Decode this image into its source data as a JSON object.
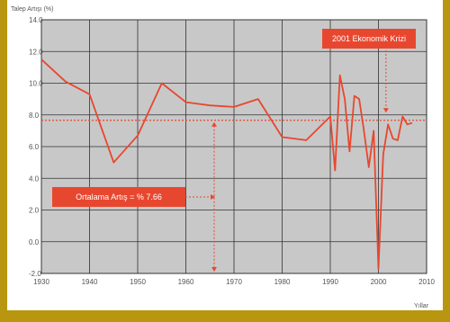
{
  "chart_data": {
    "type": "line",
    "ylabel": "Talep Artışı (%)",
    "xlabel": "Yıllar",
    "xlim": [
      1930,
      2010
    ],
    "ylim": [
      -2.0,
      14.0
    ],
    "x_ticks": [
      "1930",
      "1940",
      "1950",
      "1960",
      "1970",
      "1980",
      "1990",
      "2000",
      "2010"
    ],
    "y_ticks": [
      "14.0",
      "12.0",
      "10.0",
      "8.0",
      "6.0",
      "4.0",
      "2.0",
      "0.0",
      "-2.0"
    ],
    "grid": true,
    "series": [
      {
        "color": "#e8472f",
        "x": [
          1930,
          1935,
          1940,
          1945,
          1950,
          1955,
          1960,
          1965,
          1970,
          1975,
          1980,
          1985,
          1990,
          1991,
          1992,
          1993,
          1994,
          1995,
          1996,
          1997,
          1998,
          1999,
          2000,
          2001,
          2002,
          2003,
          2004,
          2005,
          2006,
          2007
        ],
        "y": [
          11.5,
          10.1,
          9.3,
          5.0,
          6.7,
          10.0,
          8.8,
          8.6,
          8.5,
          9.0,
          6.6,
          6.4,
          7.9,
          4.5,
          10.5,
          9.0,
          5.7,
          9.2,
          9.0,
          7.0,
          4.7,
          7.0,
          -1.7,
          5.5,
          7.4,
          6.5,
          6.4,
          7.9,
          7.4,
          7.5
        ]
      }
    ],
    "average": 7.66,
    "annotations": [
      {
        "text": "2001 Ekonomik Krizi",
        "color": "#e8472f"
      },
      {
        "text": "Ortalama Artış = % 7.66",
        "color": "#e8472f"
      }
    ]
  }
}
